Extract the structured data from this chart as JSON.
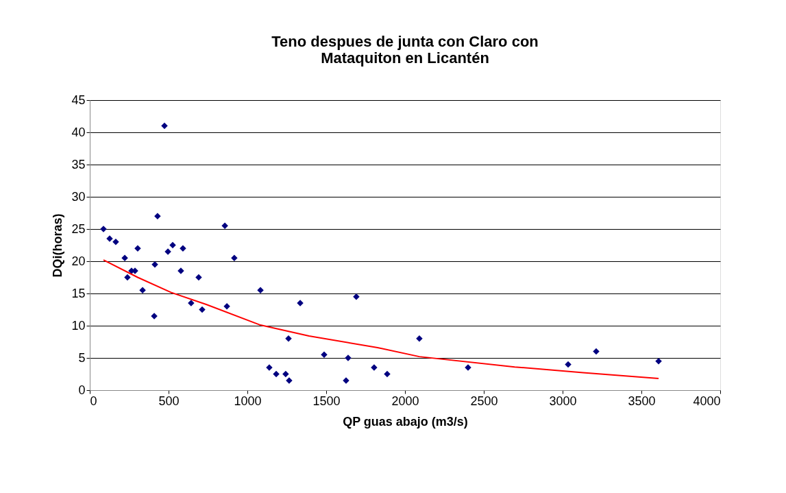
{
  "chart_data": {
    "type": "scatter",
    "title": "Teno despues de junta con Claro con\nMataquiton en Licantén",
    "xlabel": "QP guas abajo (m3/s)",
    "ylabel": "DQi(horas)",
    "xlim": [
      0,
      4000
    ],
    "xticks": [
      0,
      500,
      1000,
      1500,
      2000,
      2500,
      3000,
      3500,
      4000
    ],
    "ylim": [
      0,
      45
    ],
    "yticks": [
      0,
      5,
      10,
      15,
      20,
      25,
      30,
      35,
      40,
      45
    ],
    "grid": "y",
    "series": [
      {
        "color": "#000080",
        "marker": "diamond",
        "x": [
          87,
          126,
          165,
          222,
          239,
          265,
          287,
          304,
          335,
          409,
          413,
          430,
          474,
          496,
          526,
          578,
          591,
          643,
          691,
          713,
          857,
          870,
          917,
          1083,
          1139,
          1183,
          1243,
          1265,
          1261,
          1335,
          1487,
          1626,
          1639,
          1691,
          1804,
          1887,
          2091,
          2400,
          3035,
          3213,
          3609
        ],
        "values": [
          25,
          23.5,
          23,
          20.5,
          17.5,
          18.5,
          18.5,
          22,
          15.5,
          11.5,
          19.5,
          27,
          41,
          21.5,
          22.5,
          18.5,
          22,
          13.5,
          17.5,
          12.5,
          25.5,
          13,
          20.5,
          15.5,
          3.5,
          2.5,
          2.5,
          1.5,
          8,
          13.5,
          5.5,
          1.5,
          5,
          14.5,
          3.5,
          2.5,
          8,
          3.5,
          4,
          6,
          4.5
        ]
      },
      {
        "type": "line",
        "color": "#ff0000",
        "line_style": "solid",
        "marker": "none",
        "x": [
          87,
          304,
          522,
          739,
          1083,
          1391,
          1826,
          2091,
          2696,
          3130,
          3609
        ],
        "values": [
          20.2,
          17.5,
          15.1,
          13.3,
          10.1,
          8.4,
          6.6,
          5.2,
          3.6,
          2.7,
          1.8
        ]
      }
    ]
  }
}
